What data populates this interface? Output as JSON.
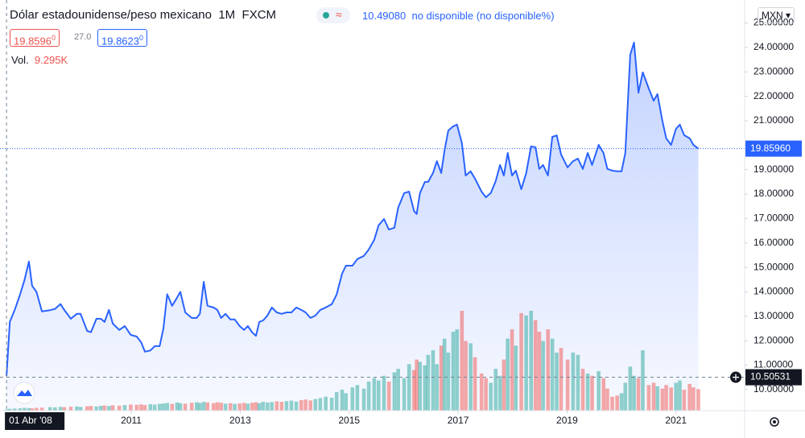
{
  "header": {
    "symbol": "Dólar estadounidense/peso mexicano",
    "interval": "1M",
    "source": "FXCM",
    "change": "10.49080",
    "status": "no disponible (no disponible%)",
    "bid": "19.8596",
    "bid_small": "0",
    "spread": "27.0",
    "ask": "19.8623",
    "ask_small": "0",
    "volume_label": "Vol.",
    "volume_value": "9.295K",
    "currency": "MXN"
  },
  "chart_data": {
    "type": "area",
    "line_color": "#2962ff",
    "up_color": "rgba(38,166,154,0.5)",
    "down_color": "rgba(239,83,80,0.5)",
    "x": [
      2008.71,
      2008.77,
      2008.86,
      2008.96,
      2009.04,
      2009.12,
      2009.18,
      2009.26,
      2009.36,
      2009.51,
      2009.6,
      2009.7,
      2009.77,
      2009.89,
      2010.0,
      2010.07,
      2010.19,
      2010.26,
      2010.36,
      2010.44,
      2010.51,
      2010.59,
      2010.66,
      2010.78,
      2010.88,
      2010.99,
      2011.1,
      2011.18,
      2011.25,
      2011.35,
      2011.43,
      2011.52,
      2011.59,
      2011.66,
      2011.75,
      2011.84,
      2011.9,
      2011.99,
      2012.11,
      2012.2,
      2012.26,
      2012.33,
      2012.4,
      2012.51,
      2012.58,
      2012.65,
      2012.73,
      2012.82,
      2012.9,
      2012.99,
      2013.07,
      2013.14,
      2013.22,
      2013.29,
      2013.35,
      2013.42,
      2013.5,
      2013.58,
      2013.67,
      2013.76,
      2013.85,
      2013.94,
      2014.03,
      2014.12,
      2014.2,
      2014.29,
      2014.38,
      2014.47,
      2014.57,
      2014.68,
      2014.77,
      2014.87,
      2014.94,
      2015.06,
      2015.15,
      2015.27,
      2015.36,
      2015.46,
      2015.54,
      2015.64,
      2015.73,
      2015.83,
      2015.9,
      2016.01,
      2016.1,
      2016.19,
      2016.24,
      2016.3,
      2016.39,
      2016.45,
      2016.54,
      2016.61,
      2016.69,
      2016.75,
      2016.82,
      2016.91,
      2016.98,
      2017.07,
      2017.14,
      2017.23,
      2017.31,
      2017.43,
      2017.51,
      2017.6,
      2017.69,
      2017.77,
      2017.84,
      2017.91,
      2017.99,
      2018.06,
      2018.16,
      2018.25,
      2018.34,
      2018.42,
      2018.49,
      2018.56,
      2018.65,
      2018.73,
      2018.81,
      2018.89,
      2019.01,
      2019.11,
      2019.2,
      2019.29,
      2019.38,
      2019.46,
      2019.58,
      2019.67,
      2019.74,
      2019.83,
      2019.92,
      2020.0,
      2020.07,
      2020.16,
      2020.23,
      2020.31,
      2020.39,
      2020.5,
      2020.59,
      2020.66,
      2020.75,
      2020.82,
      2020.91,
      2021.0,
      2021.07,
      2021.15,
      2021.25,
      2021.32,
      2021.41
    ],
    "values": [
      10.56,
      12.77,
      13.26,
      13.9,
      14.48,
      15.24,
      14.25,
      14.0,
      13.2,
      13.25,
      13.3,
      13.5,
      13.26,
      12.9,
      13.1,
      13.1,
      12.4,
      12.35,
      12.9,
      12.9,
      12.77,
      13.26,
      12.7,
      12.44,
      12.6,
      12.24,
      12.17,
      11.94,
      11.55,
      11.6,
      11.78,
      11.78,
      12.5,
      13.9,
      13.43,
      13.76,
      14.0,
      13.16,
      12.93,
      12.93,
      13.1,
      14.41,
      13.43,
      13.36,
      13.26,
      12.93,
      13.1,
      12.87,
      12.87,
      12.6,
      12.44,
      12.6,
      12.34,
      12.2,
      12.77,
      12.83,
      13.03,
      13.36,
      13.16,
      13.1,
      13.16,
      13.16,
      13.36,
      13.26,
      13.16,
      12.93,
      13.03,
      13.26,
      13.36,
      13.49,
      13.89,
      14.74,
      15.07,
      15.07,
      15.34,
      15.47,
      15.73,
      16.13,
      16.72,
      16.98,
      16.55,
      16.62,
      17.44,
      18.04,
      18.1,
      17.31,
      17.18,
      18.04,
      18.5,
      18.5,
      18.86,
      19.35,
      18.86,
      19.78,
      20.6,
      20.77,
      20.84,
      20.08,
      18.76,
      18.93,
      18.63,
      18.1,
      17.87,
      18.04,
      18.53,
      19.19,
      18.76,
      19.68,
      18.76,
      18.96,
      18.2,
      18.86,
      19.95,
      19.92,
      19.03,
      19.19,
      18.76,
      20.34,
      20.4,
      19.62,
      19.09,
      19.35,
      19.45,
      19.03,
      19.68,
      19.19,
      20.01,
      19.68,
      19.03,
      18.96,
      18.93,
      18.93,
      19.68,
      23.7,
      24.2,
      22.15,
      22.98,
      22.32,
      21.82,
      22.09,
      21.0,
      20.28,
      20.01,
      20.67,
      20.84,
      20.41,
      20.28,
      20.01,
      19.86
    ],
    "volume": [
      500,
      800,
      900,
      1000,
      1200,
      1100,
      1000,
      1200,
      1300,
      1500,
      1400,
      1600,
      1500,
      1700,
      1800,
      1600,
      1900,
      2000,
      1800,
      2100,
      2200,
      2000,
      2300,
      2100,
      2400,
      2600,
      2500,
      2700,
      2400,
      2800,
      2600,
      2900,
      3100,
      3300,
      2900,
      3500,
      3200,
      3000,
      3400,
      3600,
      3300,
      3800,
      3500,
      3200,
      3600,
      3400,
      3000,
      3200,
      2900,
      3100,
      3300,
      3000,
      3400,
      3600,
      3200,
      3800,
      3500,
      3700,
      4000,
      3800,
      4100,
      4300,
      3900,
      4500,
      4800,
      4400,
      5000,
      5400,
      6000,
      5600,
      8000,
      9000,
      7500,
      10000,
      11000,
      9500,
      12500,
      14000,
      13000,
      15000,
      12500,
      16500,
      18000,
      14000,
      20000,
      17500,
      22000,
      21000,
      19500,
      24000,
      26000,
      20000,
      28000,
      31000,
      25000,
      34000,
      35000,
      43000,
      30000,
      29000,
      23000,
      16000,
      14000,
      12000,
      18000,
      15000,
      22000,
      31000,
      35000,
      28000,
      42000,
      41000,
      43000,
      39000,
      34000,
      30000,
      35000,
      31000,
      25000,
      27000,
      22000,
      25000,
      24000,
      18000,
      16000,
      15000,
      17000,
      14000,
      9500,
      6000,
      6500,
      7500,
      12000,
      19000,
      15000,
      14000,
      26000,
      11000,
      12000,
      10500,
      9500,
      11000,
      10000,
      12000,
      13000,
      9000,
      11500,
      10000,
      9295
    ],
    "xlim": [
      2008.59,
      2022.26
    ],
    "xticks": [
      2011,
      2013,
      2015,
      2017,
      2019,
      2021
    ],
    "ylim": [
      9.14,
      25.94
    ],
    "yticks": [
      {
        "value": 10,
        "label": "10.00000"
      },
      {
        "value": 11,
        "label": "11.00000"
      },
      {
        "value": 12,
        "label": "12.00000"
      },
      {
        "value": 13,
        "label": "13.00000"
      },
      {
        "value": 14,
        "label": "14.00000"
      },
      {
        "value": 15,
        "label": "15.00000"
      },
      {
        "value": 16,
        "label": "16.00000"
      },
      {
        "value": 17,
        "label": "17.00000"
      },
      {
        "value": 18,
        "label": "18.00000"
      },
      {
        "value": 19,
        "label": "19.00000"
      },
      {
        "value": 20,
        "label": "20.00000"
      },
      {
        "value": 21,
        "label": "21.00000"
      },
      {
        "value": 22,
        "label": "22.00000"
      },
      {
        "value": 23,
        "label": "23.00000"
      },
      {
        "value": 24,
        "label": "24.00000"
      },
      {
        "value": 25,
        "label": "25.00000"
      }
    ],
    "last_price": {
      "value": 19.8596,
      "label": "19.85960"
    },
    "crosshair": {
      "value": 10.50531,
      "label": "10.50531",
      "x_label": "01 Abr '08"
    }
  }
}
